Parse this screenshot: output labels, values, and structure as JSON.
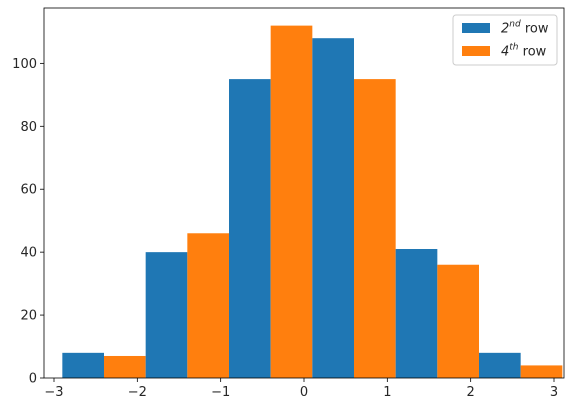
{
  "chart_data": {
    "type": "bar",
    "bins": [
      {
        "start": -2.9,
        "end": -1.9
      },
      {
        "start": -1.9,
        "end": -0.9
      },
      {
        "start": -0.9,
        "end": 0.1
      },
      {
        "start": 0.1,
        "end": 1.1
      },
      {
        "start": 1.1,
        "end": 2.1
      },
      {
        "start": 2.1,
        "end": 3.1
      }
    ],
    "series": [
      {
        "name_base": "2",
        "name_sup": "nd",
        "name_tail": " row",
        "color": "#1f77b4",
        "values": [
          8,
          40,
          95,
          108,
          41,
          8
        ]
      },
      {
        "name_base": "4",
        "name_sup": "th",
        "name_tail": " row",
        "color": "#ff7f0e",
        "values": [
          7,
          46,
          112,
          95,
          36,
          4
        ]
      }
    ],
    "xlim": [
      -3.12,
      3.12
    ],
    "ylim": [
      0,
      117.6
    ],
    "xticks": [
      -3,
      -2,
      -1,
      0,
      1,
      2,
      3
    ],
    "xtick_labels": [
      "−3",
      "−2",
      "−1",
      "0",
      "1",
      "2",
      "3"
    ],
    "yticks": [
      0,
      20,
      40,
      60,
      80,
      100
    ],
    "ytick_labels": [
      "0",
      "20",
      "40",
      "60",
      "80",
      "100"
    ],
    "grid": false,
    "legend_position": "top-right"
  }
}
